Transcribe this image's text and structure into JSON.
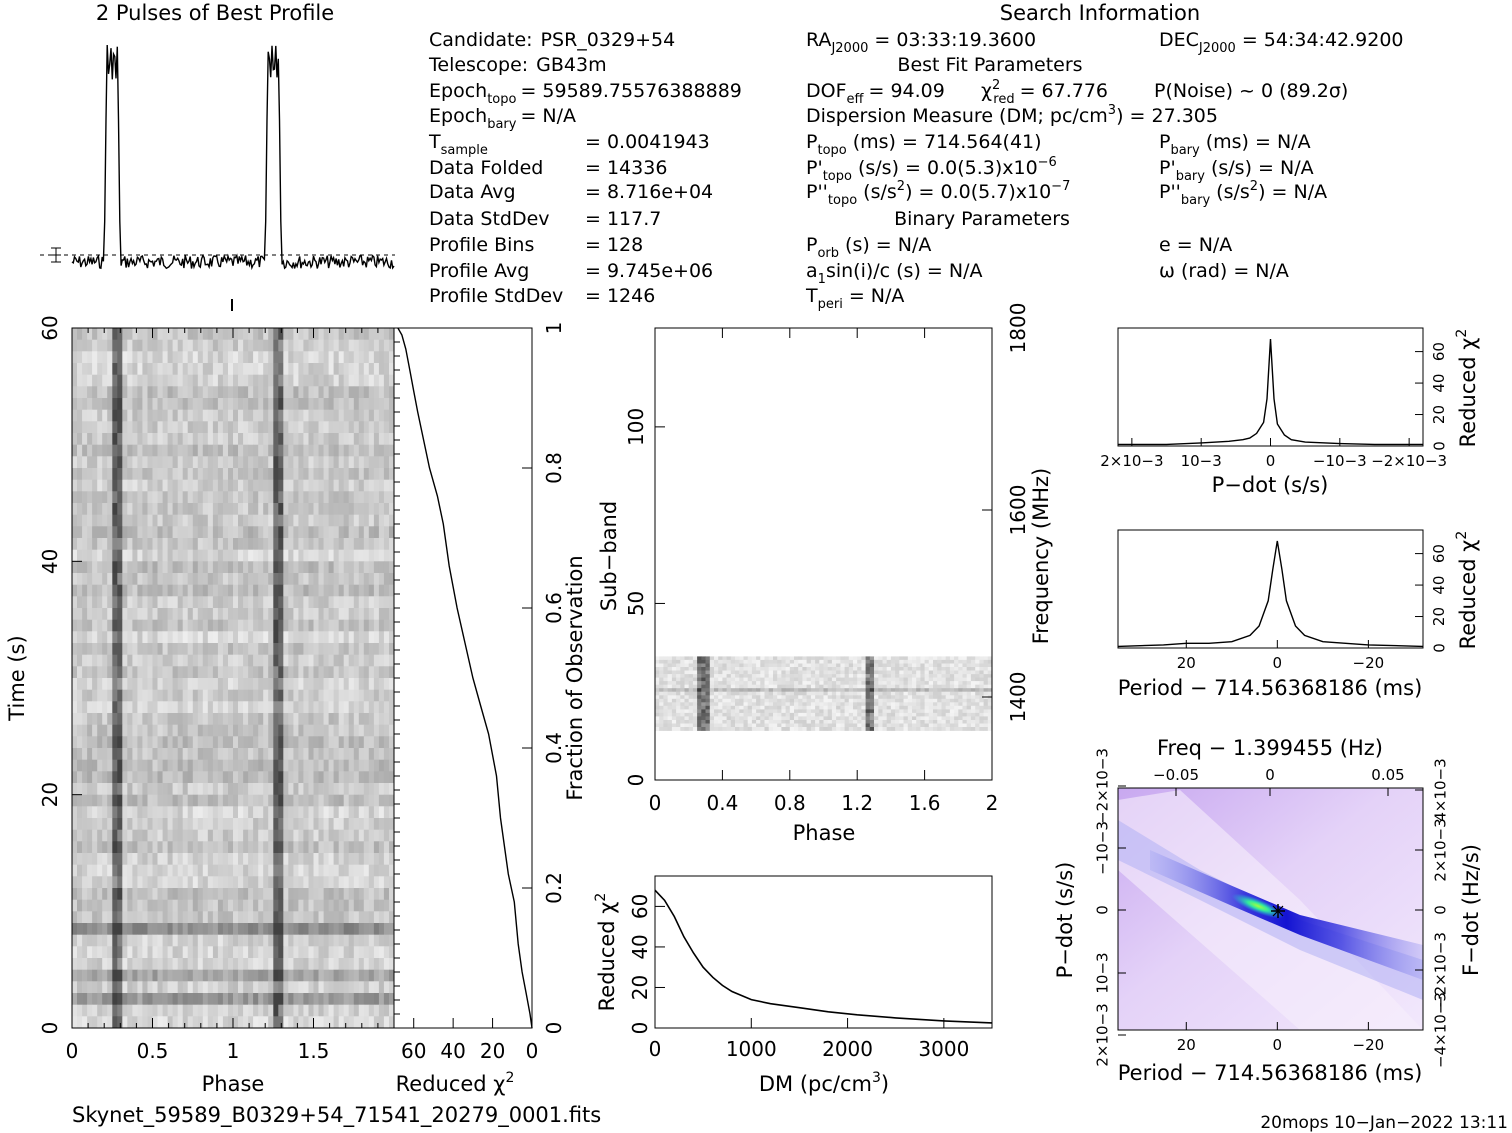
{
  "title_profile": "2 Pulses of Best Profile",
  "title_search": "Search Information",
  "info_left": [
    {
      "k": "Candidate:",
      "v": "PSR_0329+54"
    },
    {
      "k": "Telescope:",
      "v": "GB43m"
    },
    {
      "k": "Epoch",
      "sub": "topo",
      "v": "= 59589.75576388889"
    },
    {
      "k": "Epoch",
      "sub": "bary",
      "v": "= N/A"
    },
    {
      "k": "T",
      "sub": "sample",
      "v": "=    0.0041943"
    },
    {
      "k": "Data Folded",
      "v": "=    14336"
    },
    {
      "k": "Data Avg",
      "v": "=    8.716e+04"
    },
    {
      "k": "Data StdDev",
      "v": "=    117.7"
    },
    {
      "k": "Profile Bins",
      "v": "=    128"
    },
    {
      "k": "Profile Avg",
      "v": "=    9.745e+06"
    },
    {
      "k": "Profile StdDev",
      "v": "=    1246"
    }
  ],
  "info_mid": {
    "ra": "= 03:33:19.3600",
    "best_fit_header": "Best Fit Parameters",
    "dof": "DOF",
    "dof_val": "= 94.09",
    "chi": "χ",
    "chi_val": "= 67.776",
    "pnoise": "P(Noise) ~ 0    (89.2σ)",
    "dm": "Dispersion Measure (DM; pc/cm",
    "dm_val": ") = 27.305",
    "ptopo": "(ms) =   714.564(41)",
    "pdot_topo": "(s/s) = 0.0(5.3)x10",
    "pdot_topo_exp": "−6",
    "pddot_topo": "(s/s",
    "pddot_topo_val": ") = 0.0(5.7)x10",
    "pddot_topo_exp": "−7",
    "binary_header": "Binary Parameters",
    "porb": "(s) = N/A",
    "a1": "a",
    "a1_rest": "sin(i)/c (s) = N/A",
    "tperi": "= N/A"
  },
  "info_right": {
    "dec": "= 54:34:42.9200",
    "pbary": "(ms) = N/A",
    "pdot_bary": "(s/s) = N/A",
    "pddot_bary": "(s/s",
    "pddot_bary_val": ") = N/A",
    "e": "e = N/A",
    "omega": "ω (rad) = N/A"
  },
  "labels": {
    "time_axis": "Time (s)",
    "phase": "Phase",
    "reduced_chi": "Reduced χ",
    "fraction_obs": "Fraction of Observation",
    "sub_band": "Sub−band",
    "frequency": "Frequency (MHz)",
    "dm_axis": "DM (pc/cm",
    "pdot_axis": "P−dot (s/s)",
    "period_axis": "Period − 714.56368186 (ms)",
    "freq_axis": "Freq − 1.399455 (Hz)",
    "fdot_axis": "F−dot (Hz/s)",
    "filename": "Skynet_59589_B0329+54_71541_20279_0001.fits",
    "footer": "20mops 10−Jan−2022 13:11"
  },
  "chart_data": [
    {
      "type": "line",
      "title": "2 Pulses of Best Profile",
      "x_range": [
        0,
        2
      ],
      "pulse_phases": [
        0.25,
        1.25
      ],
      "note_values": "two pulse peaks of relative height 1.0 over noise baseline ~0.05"
    },
    {
      "type": "heatmap",
      "xlabel": "Phase",
      "ylabel": "Time (s)",
      "x_ticks": [
        "0",
        "0.5",
        "1",
        "1.5"
      ],
      "y_ticks": [
        "0",
        "20",
        "40",
        "60"
      ],
      "x_range": [
        0,
        2
      ],
      "y_range": [
        0,
        60
      ]
    },
    {
      "type": "line",
      "xlabel": "Reduced χ2",
      "ylabel": "Fraction of Observation",
      "x_ticks": [
        "60",
        "40",
        "20",
        "0"
      ],
      "y_ticks": [
        "0",
        "0.2",
        "0.4",
        "0.6",
        "0.8",
        "1"
      ],
      "x_range": [
        70,
        0
      ],
      "y_range": [
        0,
        1
      ],
      "x": [
        0,
        1,
        3,
        5,
        7,
        9,
        12,
        16,
        18,
        22,
        26,
        30,
        34,
        38,
        42,
        45,
        48,
        52,
        55,
        58,
        60,
        62,
        64,
        66,
        68
      ],
      "y": [
        0.0,
        0.02,
        0.05,
        0.08,
        0.12,
        0.18,
        0.22,
        0.3,
        0.36,
        0.42,
        0.46,
        0.5,
        0.55,
        0.6,
        0.66,
        0.72,
        0.76,
        0.8,
        0.84,
        0.88,
        0.91,
        0.94,
        0.97,
        0.99,
        1.0
      ]
    },
    {
      "type": "heatmap",
      "xlabel": "Phase",
      "ylabel": "Sub−band",
      "y2label": "Frequency (MHz)",
      "x_ticks": [
        "0",
        "0.4",
        "0.8",
        "1.2",
        "1.6",
        "2"
      ],
      "y_ticks": [
        "0",
        "50",
        "100"
      ],
      "y2_ticks": [
        "1400",
        "1600",
        "1800"
      ],
      "x_range": [
        0,
        2
      ],
      "y_range": [
        0,
        128
      ]
    },
    {
      "type": "line",
      "xlabel": "DM (pc/cm3)",
      "ylabel": "Reduced χ2",
      "x_ticks": [
        "0",
        "1000",
        "2000",
        "3000"
      ],
      "y_ticks": [
        "0",
        "20",
        "40",
        "60"
      ],
      "x_range": [
        0,
        3500
      ],
      "y_range": [
        0,
        75
      ],
      "x": [
        0,
        100,
        200,
        300,
        400,
        500,
        600,
        700,
        800,
        1000,
        1200,
        1500,
        1800,
        2100,
        2500,
        3000,
        3500
      ],
      "y": [
        68,
        63,
        55,
        45,
        37,
        30,
        25,
        21,
        18,
        14,
        12,
        10,
        8,
        6.5,
        5,
        3.5,
        2.5
      ]
    },
    {
      "type": "line",
      "xlabel": "P−dot (s/s)",
      "ylabel": "Reduced χ2",
      "x_ticks": [
        "2×10−3",
        "10−3",
        "0",
        "−10−3",
        "−2×10−3"
      ],
      "y_ticks": [
        "0",
        "20",
        "40",
        "60"
      ],
      "x_range": [
        2.2,
        -2.2
      ],
      "y_range": [
        0,
        75
      ],
      "x": [
        2.2,
        1.5,
        1.0,
        0.6,
        0.4,
        0.3,
        0.2,
        0.1,
        0.05,
        0.0,
        -0.05,
        -0.1,
        -0.2,
        -0.3,
        -0.5,
        -1.0,
        -1.5,
        -2.2
      ],
      "y": [
        1,
        1,
        2,
        3,
        4,
        5,
        8,
        15,
        30,
        68,
        30,
        14,
        7,
        4,
        2.5,
        1.5,
        1,
        1
      ]
    },
    {
      "type": "line",
      "xlabel": "Period − 714.56368186 (ms)",
      "ylabel": "Reduced χ2",
      "x_ticks": [
        "20",
        "0",
        "−20"
      ],
      "y_ticks": [
        "0",
        "20",
        "40",
        "60"
      ],
      "x_range": [
        35,
        -32
      ],
      "y_range": [
        0,
        75
      ],
      "x": [
        35,
        25,
        20,
        15,
        10,
        6,
        4,
        2,
        1,
        0,
        -1,
        -2,
        -4,
        -6,
        -10,
        -15,
        -20,
        -32
      ],
      "y": [
        1,
        2,
        3,
        3,
        4,
        8,
        14,
        30,
        50,
        68,
        50,
        30,
        14,
        8,
        4,
        3,
        2,
        1
      ]
    },
    {
      "type": "heatmap",
      "xlabel": "Period − 714.56368186 (ms)",
      "ylabel": "P−dot (s/s)",
      "x2label": "Freq − 1.399455 (Hz)",
      "y2label": "F−dot (Hz/s)",
      "x_ticks": [
        "20",
        "0",
        "−20"
      ],
      "x2_ticks": [
        "−0.05",
        "0",
        "0.05"
      ],
      "y_ticks": [
        "2×10−3",
        "10−3",
        "0",
        "−10−3",
        "−2×10−3"
      ],
      "y2_ticks": [
        "−4×10−3",
        "−2×10−3",
        "0",
        "2×10−3",
        "4×10−3"
      ]
    }
  ],
  "colors": {
    "ink": "#000000",
    "diag_dark": "#1010c8",
    "diag_mid": "#6a6af0",
    "diag_light": "#d9c3f5",
    "diag_peak": "#30e060"
  }
}
